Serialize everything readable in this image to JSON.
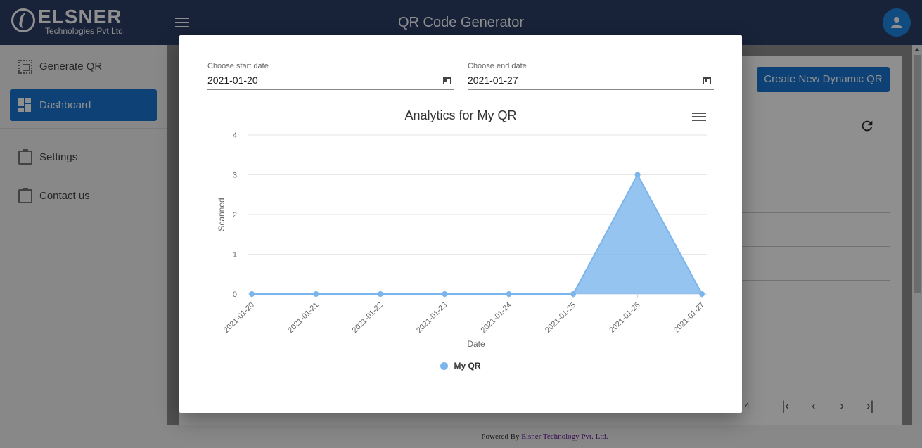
{
  "app": {
    "logo_name": "ELSNER",
    "logo_sub": "Technologies Pvt Ltd.",
    "title": "QR Code Generator",
    "menu_icon": "menu-icon",
    "avatar_icon": "user-icon"
  },
  "sidebar": {
    "items": [
      {
        "label": "Generate QR",
        "icon": "qr-grid-icon"
      },
      {
        "label": "Dashboard",
        "icon": "dashboard-icon",
        "active": true
      },
      {
        "label": "Settings",
        "icon": "clipboard-icon"
      },
      {
        "label": "Contact us",
        "icon": "clipboard-icon"
      }
    ]
  },
  "main": {
    "create_button": "Create New Dynamic QR",
    "pager_count": "4"
  },
  "footer": {
    "prefix": "Powered By",
    "link": "Elsner Technology Pvt. Ltd."
  },
  "modal": {
    "start_date": {
      "label": "Choose start date",
      "value": "2021-01-20"
    },
    "end_date": {
      "label": "Choose end date",
      "value": "2021-01-27"
    }
  },
  "colors": {
    "topbar": "#2c3e66",
    "accent": "#1976d2",
    "series": "#7cb5ec"
  },
  "chart_data": {
    "type": "area",
    "title": "Analytics for My QR",
    "xlabel": "Date",
    "ylabel": "Scanned",
    "categories": [
      "2021-01-20",
      "2021-01-21",
      "2021-01-22",
      "2021-01-23",
      "2021-01-24",
      "2021-01-25",
      "2021-01-26",
      "2021-01-27"
    ],
    "series": [
      {
        "name": "My QR",
        "values": [
          0,
          0,
          0,
          0,
          0,
          0,
          3,
          0
        ]
      }
    ],
    "ylim": [
      0,
      4
    ],
    "yticks": [
      0,
      1,
      2,
      3,
      4
    ],
    "grid": true,
    "legend": "bottom-center"
  }
}
